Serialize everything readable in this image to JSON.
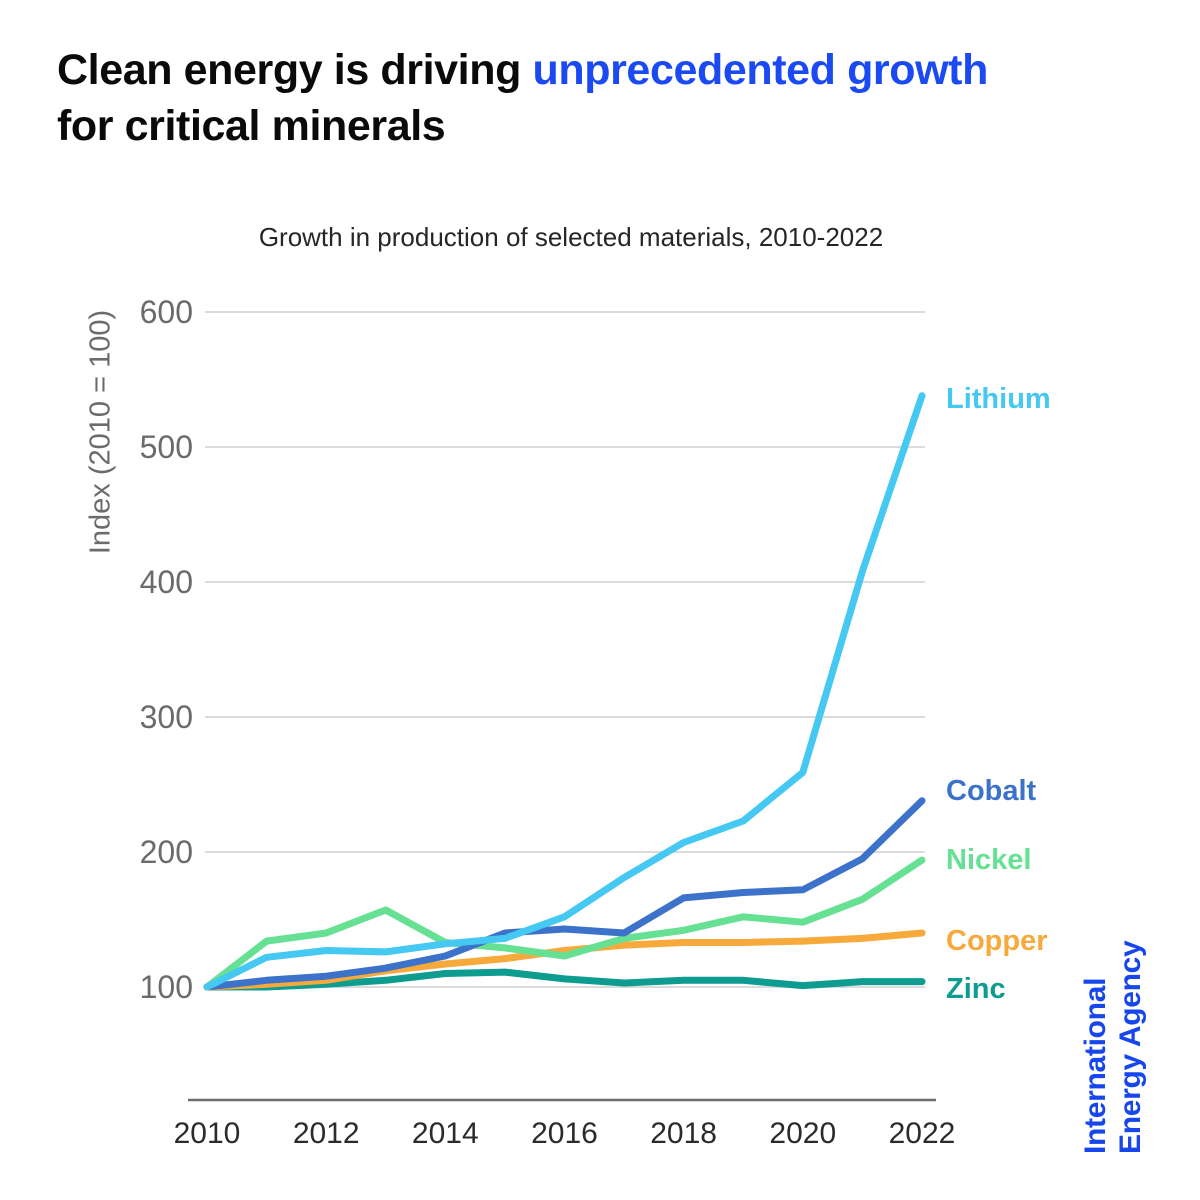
{
  "title": {
    "segments": [
      {
        "text": "Clean energy is driving ",
        "accent": false
      },
      {
        "text": "unprecedented growth",
        "accent": true
      },
      {
        "text": " for critical minerals",
        "accent": false
      }
    ]
  },
  "footer_logo": {
    "line1": "International",
    "line2": "Energy Agency"
  },
  "colors": {
    "accent_blue": "#1b4af2",
    "iea_blue": "#1646ec",
    "title_black": "#0a0a0a",
    "gridline": "#cfcfcf",
    "axis_line": "#6e6e6e",
    "y_tick_gray": "#6b6b6b",
    "x_tick_dark": "#2b2b2b"
  },
  "chart_data": {
    "type": "line",
    "title": "Growth in production of selected materials, 2010-2022",
    "xlabel": "",
    "ylabel": "Index (2010 = 100)",
    "x": [
      2010,
      2011,
      2012,
      2013,
      2014,
      2015,
      2016,
      2017,
      2018,
      2019,
      2020,
      2021,
      2022
    ],
    "xticks": [
      2010,
      2012,
      2014,
      2016,
      2018,
      2020,
      2022
    ],
    "yticks": [
      600,
      500,
      400,
      300,
      200,
      100
    ],
    "ylim": [
      100,
      620
    ],
    "grid": "horizontal",
    "legend_position": "right-of-line-end",
    "series": [
      {
        "name": "Zinc",
        "color": "#0d9c8f",
        "values": [
          100,
          100,
          102,
          105,
          110,
          111,
          106,
          103,
          105,
          105,
          101,
          104,
          104
        ]
      },
      {
        "name": "Copper",
        "color": "#f7a93c",
        "values": [
          100,
          102,
          105,
          112,
          117,
          121,
          127,
          131,
          133,
          133,
          134,
          136,
          140
        ]
      },
      {
        "name": "Nickel",
        "color": "#66e093",
        "values": [
          100,
          134,
          140,
          157,
          133,
          129,
          123,
          136,
          142,
          152,
          148,
          165,
          194
        ]
      },
      {
        "name": "Cobalt",
        "color": "#3c72c9",
        "values": [
          100,
          105,
          108,
          114,
          123,
          140,
          143,
          140,
          166,
          170,
          172,
          195,
          238
        ]
      },
      {
        "name": "Lithium",
        "color": "#45c8f2",
        "values": [
          100,
          122,
          127,
          126,
          132,
          136,
          152,
          181,
          207,
          223,
          259,
          408,
          538
        ]
      }
    ]
  }
}
